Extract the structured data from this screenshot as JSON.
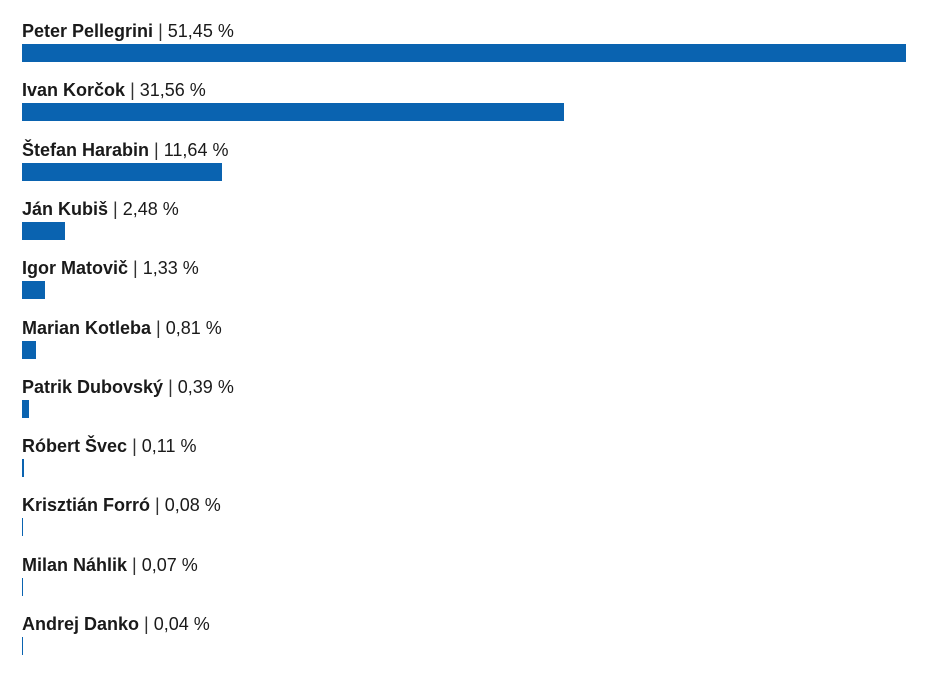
{
  "colors": {
    "bar": "#0a63b0",
    "background": "#ffffff",
    "text": "#1a1a1a"
  },
  "chart_data": {
    "type": "bar",
    "orientation": "horizontal",
    "categories": [
      "Peter Pellegrini",
      "Ivan Korčok",
      "Štefan Harabin",
      "Ján Kubiš",
      "Igor Matovič",
      "Marian Kotleba",
      "Patrik Dubovský",
      "Róbert Švec",
      "Krisztián Forró",
      "Milan Náhlik",
      "Andrej Danko"
    ],
    "values": [
      51.45,
      31.56,
      11.64,
      2.48,
      1.33,
      0.81,
      0.39,
      0.11,
      0.08,
      0.07,
      0.04
    ],
    "value_labels": [
      "51,45 %",
      "31,56 %",
      "11,64 %",
      "2,48 %",
      "1,33 %",
      "0,81 %",
      "0,39 %",
      "0,11 %",
      "0,08 %",
      "0,07 %",
      "0,04 %"
    ],
    "separator": "|",
    "title": "",
    "xlabel": "",
    "ylabel": "",
    "xlim": [
      0,
      51.45
    ],
    "grid": false,
    "legend": "none"
  }
}
